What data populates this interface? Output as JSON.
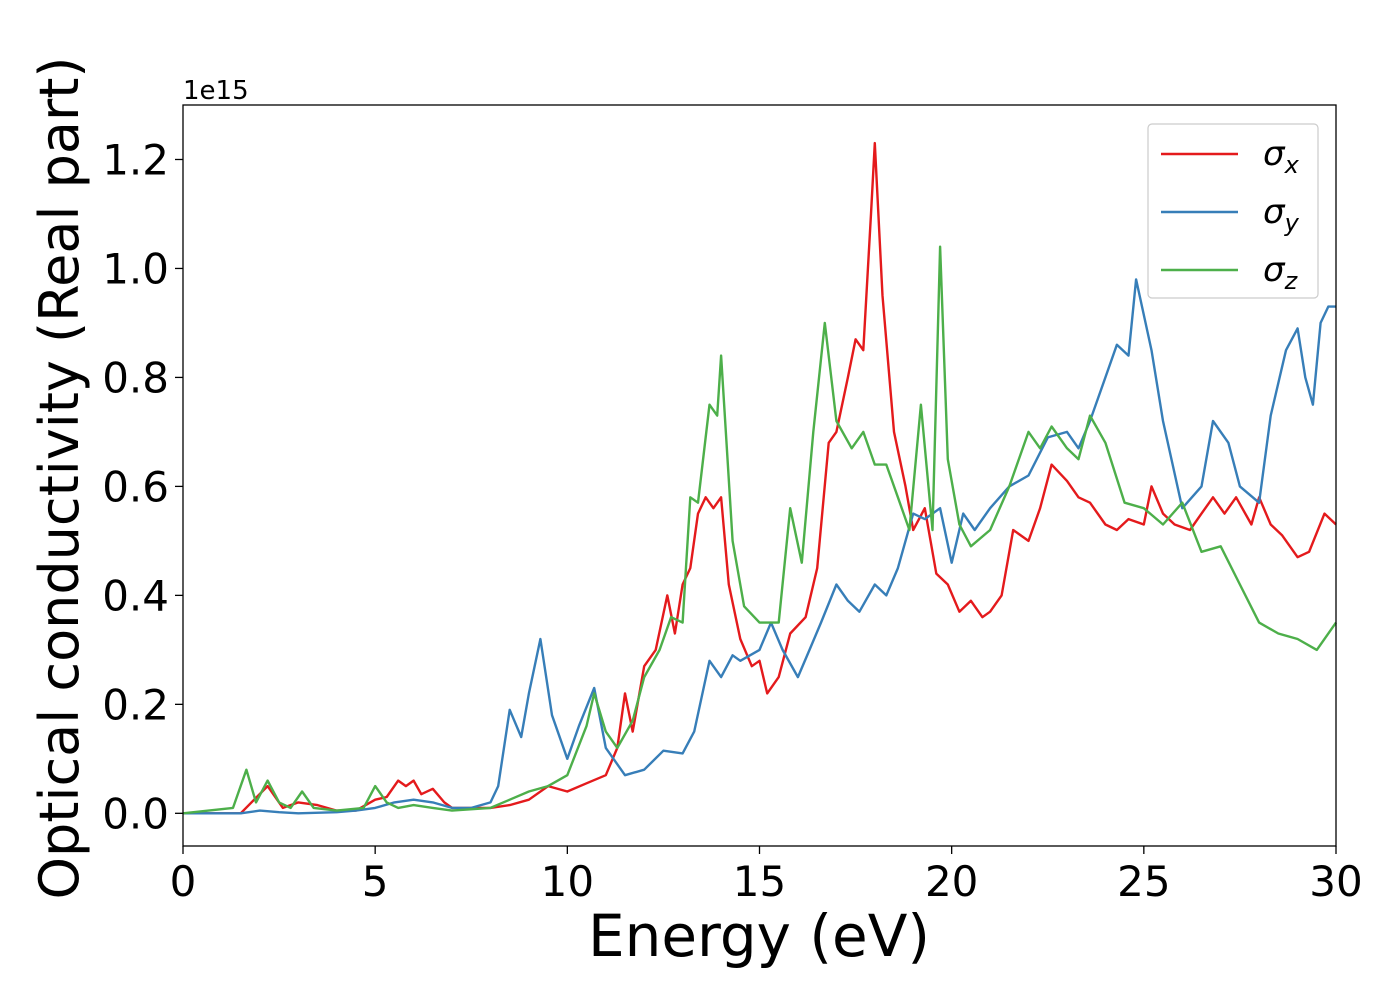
{
  "chart_data": {
    "type": "line",
    "xlabel": "Energy (eV)",
    "ylabel": "Optical conductivity (Real part)",
    "offset_text": "1e15",
    "xlim": [
      0,
      30
    ],
    "ylim": [
      -0.06,
      1.3
    ],
    "y_scale_factor": 1000000000000000.0,
    "xticks": [
      0,
      5,
      10,
      15,
      20,
      25,
      30
    ],
    "xtick_labels": [
      "0",
      "5",
      "10",
      "15",
      "20",
      "25",
      "30"
    ],
    "yticks": [
      0.0,
      0.2,
      0.4,
      0.6,
      0.8,
      1.0,
      1.2
    ],
    "ytick_labels": [
      "0.0",
      "0.2",
      "0.4",
      "0.6",
      "0.8",
      "1.0",
      "1.2"
    ],
    "grid": false,
    "legend_position": "top-right",
    "series": [
      {
        "name": "σx",
        "legend_main": "σ",
        "legend_sub": "x",
        "color": "#e41a1c",
        "x": [
          0,
          1.5,
          2.2,
          2.6,
          3.0,
          3.5,
          4.0,
          4.5,
          5.0,
          5.3,
          5.6,
          5.8,
          6.0,
          6.2,
          6.5,
          6.8,
          7.0,
          7.5,
          8.0,
          8.5,
          9.0,
          9.5,
          10.0,
          10.5,
          11.0,
          11.3,
          11.5,
          11.7,
          12.0,
          12.3,
          12.6,
          12.8,
          13.0,
          13.2,
          13.4,
          13.6,
          13.8,
          14.0,
          14.2,
          14.5,
          14.8,
          15.0,
          15.2,
          15.5,
          15.8,
          16.2,
          16.5,
          16.8,
          17.0,
          17.3,
          17.5,
          17.7,
          17.9,
          18.0,
          18.2,
          18.5,
          18.8,
          19.0,
          19.3,
          19.6,
          19.9,
          20.2,
          20.5,
          20.8,
          21.0,
          21.3,
          21.6,
          22.0,
          22.3,
          22.6,
          23.0,
          23.3,
          23.6,
          24.0,
          24.3,
          24.6,
          25.0,
          25.2,
          25.5,
          25.8,
          26.2,
          26.5,
          26.8,
          27.1,
          27.4,
          27.8,
          28.0,
          28.3,
          28.6,
          29.0,
          29.3,
          29.7,
          30.0
        ],
        "y": [
          0.0,
          0.0,
          0.05,
          0.01,
          0.02,
          0.015,
          0.005,
          0.005,
          0.025,
          0.03,
          0.06,
          0.05,
          0.06,
          0.035,
          0.045,
          0.02,
          0.01,
          0.01,
          0.01,
          0.015,
          0.025,
          0.05,
          0.04,
          0.055,
          0.07,
          0.12,
          0.22,
          0.15,
          0.27,
          0.3,
          0.4,
          0.33,
          0.42,
          0.45,
          0.55,
          0.58,
          0.56,
          0.58,
          0.42,
          0.32,
          0.27,
          0.28,
          0.22,
          0.25,
          0.33,
          0.36,
          0.45,
          0.68,
          0.7,
          0.8,
          0.87,
          0.85,
          1.1,
          1.23,
          0.95,
          0.7,
          0.6,
          0.52,
          0.56,
          0.44,
          0.42,
          0.37,
          0.39,
          0.36,
          0.37,
          0.4,
          0.52,
          0.5,
          0.56,
          0.64,
          0.61,
          0.58,
          0.57,
          0.53,
          0.52,
          0.54,
          0.53,
          0.6,
          0.55,
          0.53,
          0.52,
          0.55,
          0.58,
          0.55,
          0.58,
          0.53,
          0.58,
          0.53,
          0.51,
          0.47,
          0.48,
          0.55,
          0.53
        ]
      },
      {
        "name": "σy",
        "legend_main": "σ",
        "legend_sub": "y",
        "color": "#377eb8",
        "x": [
          0,
          1.5,
          2.0,
          2.5,
          3.0,
          4.0,
          4.5,
          5.0,
          5.5,
          6.0,
          6.5,
          7.0,
          7.5,
          8.0,
          8.2,
          8.5,
          8.8,
          9.0,
          9.3,
          9.6,
          10.0,
          10.3,
          10.7,
          11.0,
          11.5,
          12.0,
          12.5,
          13.0,
          13.3,
          13.7,
          14.0,
          14.3,
          14.5,
          15.0,
          15.3,
          15.6,
          16.0,
          16.3,
          16.6,
          17.0,
          17.3,
          17.6,
          18.0,
          18.3,
          18.6,
          19.0,
          19.3,
          19.7,
          20.0,
          20.3,
          20.6,
          21.0,
          21.5,
          22.0,
          22.5,
          23.0,
          23.3,
          23.6,
          24.0,
          24.3,
          24.6,
          24.8,
          25.2,
          25.5,
          26.0,
          26.5,
          26.8,
          27.2,
          27.5,
          28.0,
          28.3,
          28.7,
          29.0,
          29.2,
          29.4,
          29.6,
          29.8,
          30.0
        ],
        "y": [
          0.0,
          0.0,
          0.005,
          0.002,
          0.0,
          0.002,
          0.005,
          0.01,
          0.02,
          0.025,
          0.02,
          0.01,
          0.01,
          0.02,
          0.05,
          0.19,
          0.14,
          0.22,
          0.32,
          0.18,
          0.1,
          0.16,
          0.23,
          0.12,
          0.07,
          0.08,
          0.115,
          0.11,
          0.15,
          0.28,
          0.25,
          0.29,
          0.28,
          0.3,
          0.35,
          0.3,
          0.25,
          0.3,
          0.35,
          0.42,
          0.39,
          0.37,
          0.42,
          0.4,
          0.45,
          0.55,
          0.54,
          0.56,
          0.46,
          0.55,
          0.52,
          0.56,
          0.6,
          0.62,
          0.69,
          0.7,
          0.67,
          0.72,
          0.8,
          0.86,
          0.84,
          0.98,
          0.85,
          0.72,
          0.56,
          0.6,
          0.72,
          0.68,
          0.6,
          0.57,
          0.73,
          0.85,
          0.89,
          0.8,
          0.75,
          0.9,
          0.93,
          0.93
        ]
      },
      {
        "name": "σz",
        "legend_main": "σ",
        "legend_sub": "z",
        "color": "#4daf4a",
        "x": [
          0,
          1.3,
          1.65,
          1.9,
          2.2,
          2.5,
          2.8,
          3.1,
          3.4,
          4.0,
          4.7,
          5.0,
          5.3,
          5.6,
          6.0,
          6.5,
          7.0,
          8.0,
          8.5,
          9.0,
          9.5,
          10.0,
          10.5,
          10.7,
          11.0,
          11.3,
          11.7,
          12.0,
          12.4,
          12.7,
          13.0,
          13.2,
          13.4,
          13.7,
          13.9,
          14.0,
          14.3,
          14.6,
          15.0,
          15.5,
          15.8,
          16.1,
          16.4,
          16.7,
          17.0,
          17.4,
          17.7,
          18.0,
          18.3,
          18.6,
          18.9,
          19.2,
          19.5,
          19.7,
          19.9,
          20.2,
          20.5,
          21.0,
          21.5,
          22.0,
          22.3,
          22.6,
          23.0,
          23.3,
          23.6,
          24.0,
          24.5,
          25.0,
          25.5,
          26.0,
          26.5,
          27.0,
          27.5,
          28.0,
          28.5,
          29.0,
          29.5,
          30.0
        ],
        "y": [
          0.0,
          0.01,
          0.08,
          0.02,
          0.06,
          0.02,
          0.01,
          0.04,
          0.01,
          0.005,
          0.01,
          0.05,
          0.02,
          0.01,
          0.015,
          0.01,
          0.005,
          0.01,
          0.025,
          0.04,
          0.05,
          0.07,
          0.16,
          0.22,
          0.15,
          0.12,
          0.17,
          0.25,
          0.3,
          0.36,
          0.35,
          0.58,
          0.57,
          0.75,
          0.73,
          0.84,
          0.5,
          0.38,
          0.35,
          0.35,
          0.56,
          0.46,
          0.7,
          0.9,
          0.72,
          0.67,
          0.7,
          0.64,
          0.64,
          0.58,
          0.52,
          0.75,
          0.52,
          1.04,
          0.65,
          0.53,
          0.49,
          0.52,
          0.6,
          0.7,
          0.67,
          0.71,
          0.67,
          0.65,
          0.73,
          0.68,
          0.57,
          0.56,
          0.53,
          0.57,
          0.48,
          0.49,
          0.42,
          0.35,
          0.33,
          0.32,
          0.3,
          0.35
        ]
      }
    ]
  }
}
